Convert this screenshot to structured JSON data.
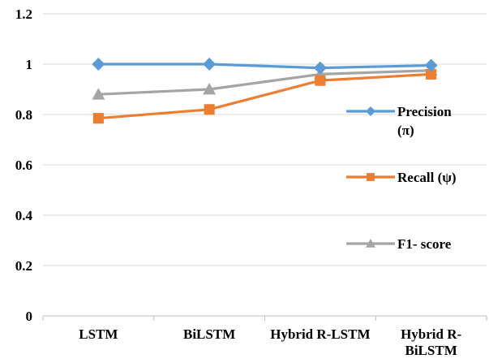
{
  "chart_data": {
    "type": "line",
    "categories": [
      "LSTM",
      "BiLSTM",
      "Hybrid R-LSTM",
      "Hybrid R-BiLSTM"
    ],
    "category_label_lines": [
      [
        "LSTM"
      ],
      [
        "BiLSTM"
      ],
      [
        "Hybrid R-LSTM"
      ],
      [
        "Hybrid R-",
        "BiLSTM"
      ]
    ],
    "y_ticks": [
      "0",
      "0.2",
      "0.4",
      "0.6",
      "0.8",
      "1",
      "1.2"
    ],
    "ylim": [
      0,
      1.2
    ],
    "grid": true,
    "legend_position": "right",
    "series": [
      {
        "name": "Precision (π)",
        "label_lines": [
          "Precision",
          "(π)"
        ],
        "values": [
          1.0,
          1.0,
          0.985,
          0.995
        ],
        "color": "#5B9BD5",
        "marker": "diamond"
      },
      {
        "name": "Recall (ψ)",
        "label_lines": [
          "Recall (ψ)"
        ],
        "values": [
          0.785,
          0.82,
          0.935,
          0.96
        ],
        "color": "#ED7D31",
        "marker": "square"
      },
      {
        "name": "F1- score",
        "label_lines": [
          "F1- score"
        ],
        "values": [
          0.88,
          0.9,
          0.96,
          0.975
        ],
        "color": "#A5A5A5",
        "marker": "triangle"
      }
    ]
  }
}
